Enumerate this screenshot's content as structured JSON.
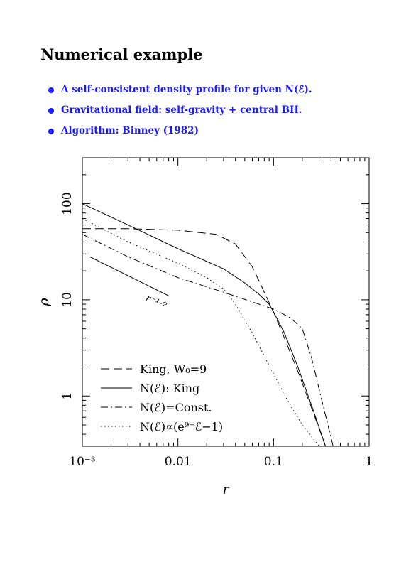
{
  "slide": {
    "title": "Numerical example",
    "bullets": [
      "A self-consistent density profile for given N(ℰ).",
      "Gravitational field: self-gravity + central BH.",
      "Algorithm: Binney (1982)"
    ],
    "accent_color": "#1a1aff"
  },
  "chart_data": {
    "type": "line",
    "xscale": "log",
    "yscale": "log",
    "xlim": [
      0.001,
      1
    ],
    "ylim": [
      0.3,
      300
    ],
    "xlabel": "r",
    "ylabel": "ρ",
    "xticks": [
      "10⁻³",
      "0.01",
      "0.1",
      "1"
    ],
    "yticks": [
      "1",
      "10",
      "100"
    ],
    "legend_position": "bottom-left",
    "series": [
      {
        "name": "King, W₀=9",
        "dash": "dashed",
        "x": [
          0.001,
          0.003,
          0.01,
          0.025,
          0.04,
          0.06,
          0.08,
          0.1,
          0.13,
          0.18,
          0.25,
          0.35
        ],
        "y": [
          55,
          55,
          53,
          48,
          38,
          22,
          12,
          7.5,
          4,
          1.8,
          0.75,
          0.3
        ]
      },
      {
        "name": "N(ℰ): King",
        "dash": "solid",
        "x": [
          0.001,
          0.003,
          0.01,
          0.03,
          0.05,
          0.07,
          0.09,
          0.1,
          0.13,
          0.18,
          0.25,
          0.35
        ],
        "y": [
          100,
          60,
          34,
          21,
          15,
          11.5,
          9,
          7.5,
          4.5,
          2.0,
          0.8,
          0.3
        ]
      },
      {
        "name": "N(ℰ)=Const.",
        "dash": "dashdot",
        "x": [
          0.001,
          0.003,
          0.01,
          0.03,
          0.06,
          0.1,
          0.15,
          0.2,
          0.25,
          0.32,
          0.42
        ],
        "y": [
          48,
          28,
          17,
          12,
          9.5,
          8,
          6.5,
          5,
          2.5,
          0.9,
          0.3
        ]
      },
      {
        "name": "N(ℰ)∝(e⁹⁻ℰ−1)",
        "dash": "dotted",
        "x": [
          0.001,
          0.003,
          0.01,
          0.02,
          0.03,
          0.04,
          0.06,
          0.1,
          0.15,
          0.2,
          0.3
        ],
        "y": [
          70,
          40,
          24,
          17,
          13,
          9,
          4.5,
          1.7,
          0.8,
          0.5,
          0.3
        ]
      }
    ],
    "annotation": {
      "text": "r⁻¹ᐟ²",
      "slope_line_x": [
        0.0012,
        0.008
      ],
      "slope_line_y": [
        28,
        11
      ]
    }
  }
}
